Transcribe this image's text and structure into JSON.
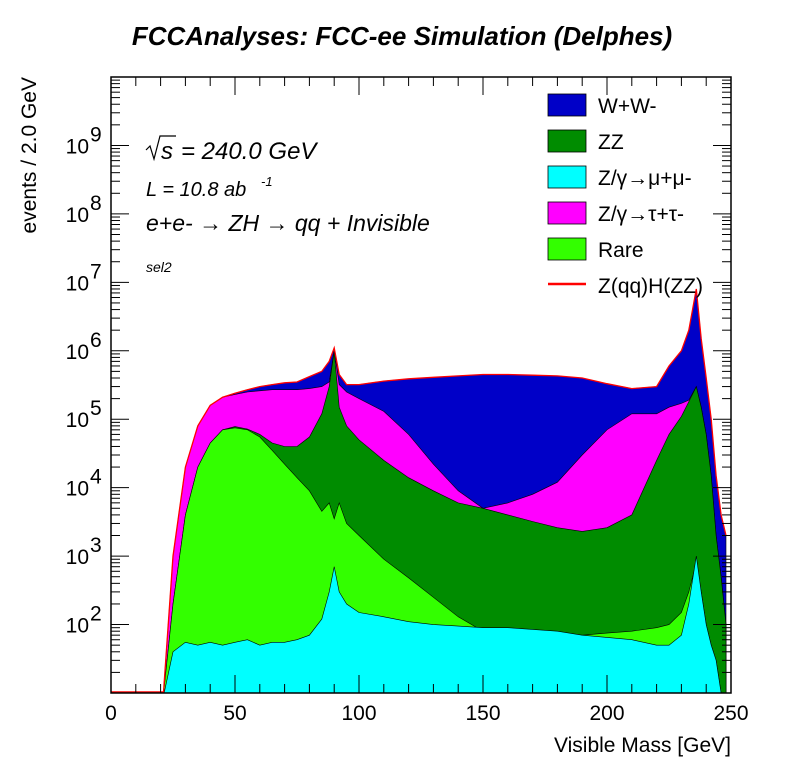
{
  "chart_data": {
    "type": "area",
    "title": "FCCAnalyses: FCC-ee Simulation (Delphes)",
    "xlabel": "Visible Mass [GeV]",
    "ylabel": "events / 2.0 GeV",
    "xlim": [
      0,
      250
    ],
    "ylim": [
      10,
      10000000000
    ],
    "log_y": true,
    "x_ticks": [
      "0",
      "50",
      "100",
      "150",
      "200",
      "250"
    ],
    "y_tick_exponents": [
      "2",
      "3",
      "4",
      "5",
      "6",
      "7",
      "8",
      "9"
    ],
    "y_tick_base": "10",
    "grid": false,
    "legend_position": "top-right",
    "annotations": {
      "sqrt_s": "s",
      "energy": "= 240.0 GeV",
      "lumi_prefix": "L = 10.8 ab",
      "lumi_exp": "-1",
      "process": "e+e- → ZH → qq + Invisible",
      "selection": "sel2"
    },
    "legend": [
      {
        "label": "W+W-",
        "color": "#0000c8"
      },
      {
        "label": "ZZ",
        "color": "#008c00"
      },
      {
        "label": "Z/γ→μ+μ-",
        "color": "#00ffff"
      },
      {
        "label": "Z/γ→τ+τ-",
        "color": "#ff00ff"
      },
      {
        "label": "Rare",
        "color": "#33ff00"
      },
      {
        "label": "Z(qq)H(ZZ)",
        "color": "#ff0000"
      }
    ],
    "x": [
      21,
      25,
      30,
      35,
      40,
      45,
      50,
      55,
      60,
      65,
      70,
      75,
      80,
      85,
      88,
      90,
      92,
      95,
      100,
      110,
      120,
      130,
      140,
      150,
      160,
      170,
      180,
      190,
      200,
      210,
      220,
      225,
      230,
      233,
      236,
      238,
      240,
      242,
      244,
      246,
      248
    ],
    "stack_order_bottom_to_top": [
      "Z/γ→μ+μ-",
      "Rare",
      "ZZ",
      "Z/γ→τ+τ-",
      "W+W-"
    ],
    "stack_totals": {
      "Z/γ→μ+μ-": [
        0,
        40,
        55,
        50,
        55,
        50,
        55,
        60,
        50,
        55,
        55,
        60,
        70,
        120,
        300,
        700,
        300,
        200,
        150,
        130,
        110,
        100,
        95,
        90,
        90,
        85,
        80,
        70,
        65,
        60,
        50,
        50,
        70,
        200,
        1000,
        300,
        100,
        50,
        30,
        10,
        10
      ],
      "Rare": [
        0,
        200,
        4000,
        20000,
        45000,
        70000,
        75000,
        70000,
        55000,
        35000,
        22000,
        14000,
        9000,
        4500,
        6000,
        3500,
        6000,
        3000,
        2000,
        900,
        480,
        250,
        130,
        80,
        60,
        60,
        65,
        70,
        75,
        80,
        90,
        100,
        150,
        300,
        800,
        300,
        100,
        50,
        30,
        10,
        10
      ],
      "ZZ": [
        0,
        200,
        4000,
        20000,
        45000,
        70000,
        78000,
        72000,
        60000,
        45000,
        40000,
        40000,
        55000,
        120000,
        300000,
        1000000,
        150000,
        80000,
        50000,
        25000,
        14000,
        9000,
        6000,
        5000,
        4000,
        3200,
        2600,
        2300,
        2600,
        4000,
        25000,
        60000,
        110000,
        180000,
        300000,
        150000,
        60000,
        15000,
        2000,
        500,
        100
      ],
      "Z/γ→τ+τ-": [
        0,
        1000,
        20000,
        80000,
        160000,
        210000,
        230000,
        250000,
        260000,
        270000,
        270000,
        270000,
        280000,
        300000,
        350000,
        1000000,
        320000,
        250000,
        200000,
        130000,
        60000,
        22000,
        9000,
        5000,
        6000,
        8000,
        12000,
        30000,
        70000,
        120000,
        120000,
        150000,
        170000,
        190000,
        300000,
        150000,
        60000,
        15000,
        2000,
        500,
        100
      ],
      "W+W-": [
        0,
        1000,
        20000,
        80000,
        160000,
        210000,
        240000,
        270000,
        300000,
        320000,
        340000,
        350000,
        420000,
        500000,
        700000,
        1100000,
        450000,
        320000,
        320000,
        360000,
        390000,
        410000,
        430000,
        450000,
        450000,
        440000,
        430000,
        400000,
        330000,
        280000,
        300000,
        600000,
        1000000,
        2000000,
        8000000,
        1500000,
        400000,
        100000,
        15000,
        4000,
        2000
      ]
    },
    "signal": {
      "name": "Z(qq)H(ZZ)",
      "description_in_legend_only": true,
      "values": [
        0,
        1000,
        20000,
        80000,
        160000,
        210000,
        240000,
        270000,
        300000,
        320000,
        340000,
        350000,
        420000,
        500000,
        700000,
        1100000,
        450000,
        320000,
        320000,
        360000,
        390000,
        410000,
        430000,
        450000,
        450000,
        440000,
        430000,
        400000,
        330000,
        280000,
        300000,
        600000,
        1000000,
        2000000,
        8000000,
        1500000,
        400000,
        100000,
        15000,
        4000,
        2000
      ]
    }
  }
}
